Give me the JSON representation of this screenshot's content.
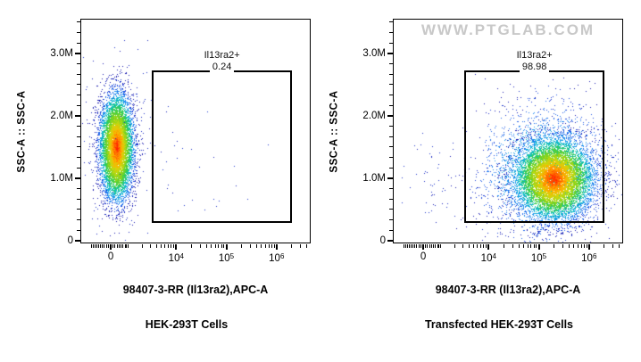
{
  "chart_data": {
    "type": "scatter",
    "subtype": "flow-cytometry-pseudocolor-density",
    "watermark_text": "WWW.PTGLAB.COM",
    "axes": {
      "x_label": "98407-3-RR (Il13ra2),APC-A",
      "y_label": "SSC-A :: SSC-A",
      "x_scale": {
        "type": "arcsinh",
        "T": 1000,
        "zero_frac": 0.132,
        "frac_per_asinh": 0.0947
      },
      "y_scale": {
        "type": "linear",
        "min": -43000,
        "max": 3557000
      },
      "x_ticks_major": [
        {
          "value": 0,
          "label": "0"
        },
        {
          "value": 10000,
          "base": "10",
          "exp": "4"
        },
        {
          "value": 100000,
          "base": "10",
          "exp": "5"
        },
        {
          "value": 1000000,
          "base": "10",
          "exp": "6"
        }
      ],
      "x_ticks_minor": [
        -1000,
        -900,
        -800,
        -700,
        -600,
        -500,
        -400,
        -300,
        -200,
        -100,
        100,
        200,
        300,
        400,
        500,
        600,
        700,
        800,
        900,
        2000,
        3000,
        4000,
        5000,
        6000,
        7000,
        8000,
        9000,
        20000,
        30000,
        40000,
        50000,
        60000,
        70000,
        80000,
        90000,
        200000,
        300000,
        400000,
        500000,
        600000,
        700000,
        800000,
        900000,
        2000000,
        3000000,
        4000000
      ],
      "y_ticks_major": [
        {
          "value": 0,
          "label": "0"
        },
        {
          "value": 1000000,
          "label": "1.0M"
        },
        {
          "value": 2000000,
          "label": "2.0M"
        },
        {
          "value": 3000000,
          "label": "3.0M"
        }
      ],
      "y_ticks_minor": [
        166667,
        333333,
        500000,
        666667,
        833333,
        1166667,
        1333333,
        1500000,
        1666667,
        1833333,
        2166667,
        2333333,
        2500000,
        2666667,
        2833333,
        3166667,
        3333333,
        3500000
      ]
    },
    "plots": [
      {
        "caption": "HEK-293T Cells",
        "watermark": false,
        "gate": {
          "name": "Il13ra2+",
          "percent": "0.24",
          "x_min": 3200,
          "x_max": 2050000,
          "y_min": 285000,
          "y_max": 2730000
        },
        "populations": [
          {
            "name": "halo",
            "n": 320,
            "x_asinh_mean": 0.26,
            "x_asinh_sd": 0.72,
            "y_mean": 1450000,
            "y_sd": 620000,
            "color_mode": "sparse",
            "seed": 11
          },
          {
            "name": "main-negative-population",
            "n": 8500,
            "x_asinh_mean": 0.26,
            "x_asinh_sd": 0.36,
            "y_mean": 1500000,
            "y_sd": 400000,
            "color_mode": "density",
            "v_scale": 1,
            "seed": 7
          },
          {
            "name": "gate-events-near",
            "n": 22,
            "x_asinh_range": [
              1.9,
              5.0
            ],
            "y_range": [
              320000,
              2300000
            ],
            "color_mode": "sparse",
            "seed": 3
          },
          {
            "name": "gate-events-far",
            "n": 4,
            "x_asinh_range": [
              5.0,
              8.3
            ],
            "y_range": [
              350000,
              2200000
            ],
            "color_mode": "sparse",
            "seed": 5
          }
        ]
      },
      {
        "caption": "Transfected HEK-293T Cells",
        "watermark": true,
        "gate": {
          "name": "Il13ra2+",
          "percent": "98.98",
          "x_min": 3200,
          "x_max": 2050000,
          "y_min": 285000,
          "y_max": 2730000
        },
        "populations": [
          {
            "name": "diffuse-positive",
            "n": 2600,
            "x_asinh_mean": 5.55,
            "x_asinh_sd": 1.4,
            "y_mean": 1120000,
            "y_sd": 520000,
            "color_mode": "density",
            "v_scale": 0.45,
            "seed": 21
          },
          {
            "name": "main-positive-population",
            "n": 9500,
            "x_asinh_mean": 5.97,
            "x_asinh_sd": 0.85,
            "y_mean": 1000000,
            "y_sd": 310000,
            "color_mode": "density",
            "v_scale": 1,
            "seed": 22
          },
          {
            "name": "negative-events",
            "n": 46,
            "x_asinh_mean": 0.35,
            "x_asinh_sd": 0.6,
            "y_mean": 1050000,
            "y_sd": 360000,
            "color_mode": "sparse",
            "seed": 23
          }
        ]
      }
    ],
    "colormap": [
      "#1616ad",
      "#1f4ae0",
      "#1e8cf5",
      "#0fc0cf",
      "#2fce52",
      "#86d41e",
      "#cfd90e",
      "#ffb000",
      "#ff6a00",
      "#ff1e00"
    ],
    "colors": {
      "frame": "#000000",
      "gate_border": "#000000",
      "text": "#000000",
      "watermark": "#c8c8c8"
    }
  }
}
